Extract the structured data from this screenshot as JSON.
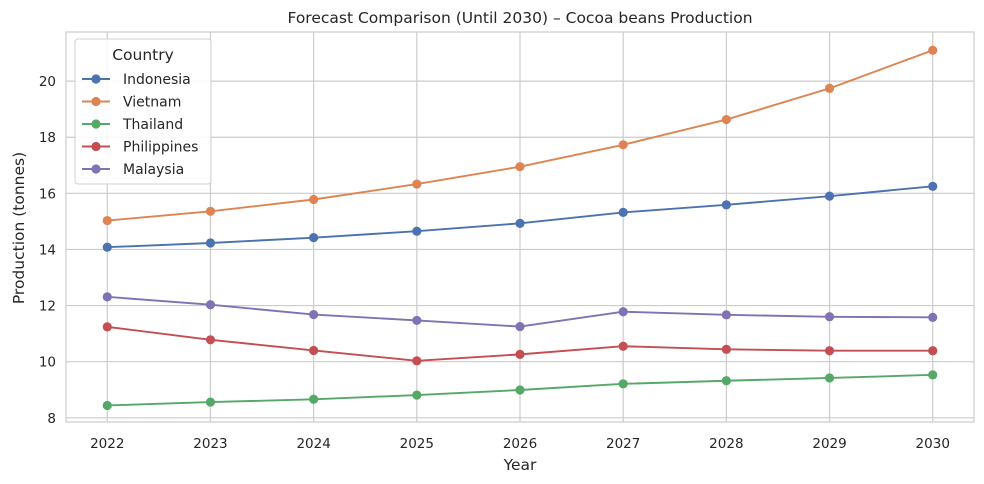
{
  "chart_data": {
    "type": "line",
    "title": "Forecast Comparison (Until 2030) – Cocoa beans Production",
    "xlabel": "Year",
    "ylabel": "Production (tonnes)",
    "x": [
      2022,
      2023,
      2024,
      2025,
      2026,
      2027,
      2028,
      2029,
      2030
    ],
    "x_tick_labels": [
      "2022",
      "2023",
      "2024",
      "2025",
      "2026",
      "2027",
      "2028",
      "2029",
      "2030"
    ],
    "y_ticks": [
      8,
      10,
      12,
      14,
      16,
      18,
      20
    ],
    "y_tick_labels": [
      "8",
      "10",
      "12",
      "14",
      "16",
      "18",
      "20"
    ],
    "xlim": [
      2021.6,
      2030.4
    ],
    "ylim": [
      7.85,
      21.75
    ],
    "grid": true,
    "legend": {
      "title": "Country",
      "placement": "top-left"
    },
    "series": [
      {
        "name": "Indonesia",
        "color": "#4c72b0",
        "values": [
          14.08,
          14.23,
          14.42,
          14.65,
          14.93,
          15.32,
          15.59,
          15.9,
          16.25
        ]
      },
      {
        "name": "Vietnam",
        "color": "#dd8452",
        "values": [
          15.03,
          15.36,
          15.78,
          16.33,
          16.95,
          17.73,
          18.63,
          19.74,
          21.1
        ]
      },
      {
        "name": "Thailand",
        "color": "#55a868",
        "values": [
          8.44,
          8.56,
          8.66,
          8.81,
          8.99,
          9.21,
          9.32,
          9.42,
          9.53
        ]
      },
      {
        "name": "Philippines",
        "color": "#c44e52",
        "values": [
          11.24,
          10.78,
          10.4,
          10.03,
          10.26,
          10.55,
          10.44,
          10.39,
          10.39
        ]
      },
      {
        "name": "Malaysia",
        "color": "#8172b3",
        "values": [
          12.31,
          12.03,
          11.68,
          11.47,
          11.25,
          11.78,
          11.67,
          11.6,
          11.58
        ]
      }
    ]
  }
}
